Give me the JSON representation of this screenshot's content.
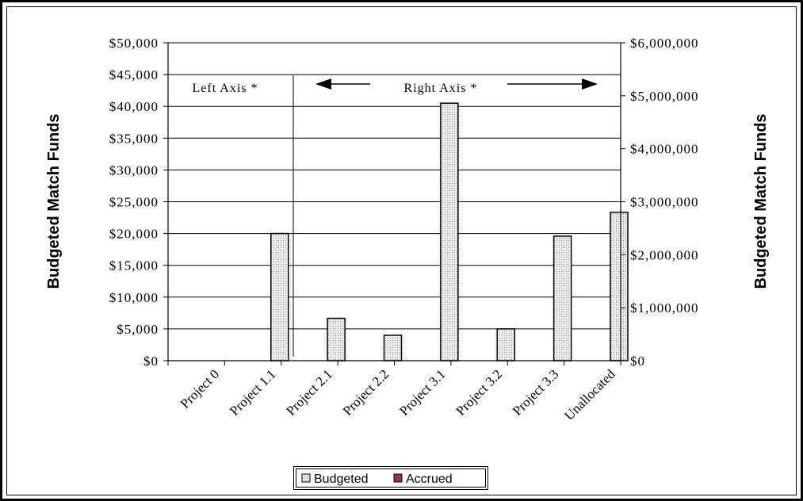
{
  "chart_data": {
    "type": "bar",
    "categories": [
      "Project 0",
      "Project 1.1",
      "Project 2.1",
      "Project 2.2",
      "Project 3.1",
      "Project 3.2",
      "Project 3.3",
      "Unallocated"
    ],
    "series": [
      {
        "name": "Budgeted",
        "axis": [
          "left",
          "left",
          "right",
          "right",
          "right",
          "right",
          "right",
          "right"
        ],
        "values": [
          0,
          20000,
          800000,
          480000,
          4860000,
          600000,
          2350000,
          2800000
        ],
        "color": "#d4d4d4"
      },
      {
        "name": "Accrued",
        "values": [
          0,
          0,
          0,
          0,
          0,
          0,
          0,
          0
        ],
        "color": "#993366"
      }
    ],
    "y_left": {
      "label": "Budgeted Match Funds",
      "ylim": [
        0,
        50000
      ],
      "ticks": [
        "$0",
        "$5,000",
        "$10,000",
        "$15,000",
        "$20,000",
        "$25,000",
        "$30,000",
        "$35,000",
        "$40,000",
        "$45,000",
        "$50,000"
      ]
    },
    "y_right": {
      "label": "Budgeted Match Funds",
      "ylim": [
        0,
        6000000
      ],
      "ticks": [
        "$0",
        "$1,000,000",
        "$2,000,000",
        "$3,000,000",
        "$4,000,000",
        "$5,000,000",
        "$6,000,000"
      ]
    },
    "annotations": {
      "left_axis": "Left Axis *",
      "right_axis": "Right Axis *"
    },
    "grid": true,
    "legend_position": "bottom"
  }
}
